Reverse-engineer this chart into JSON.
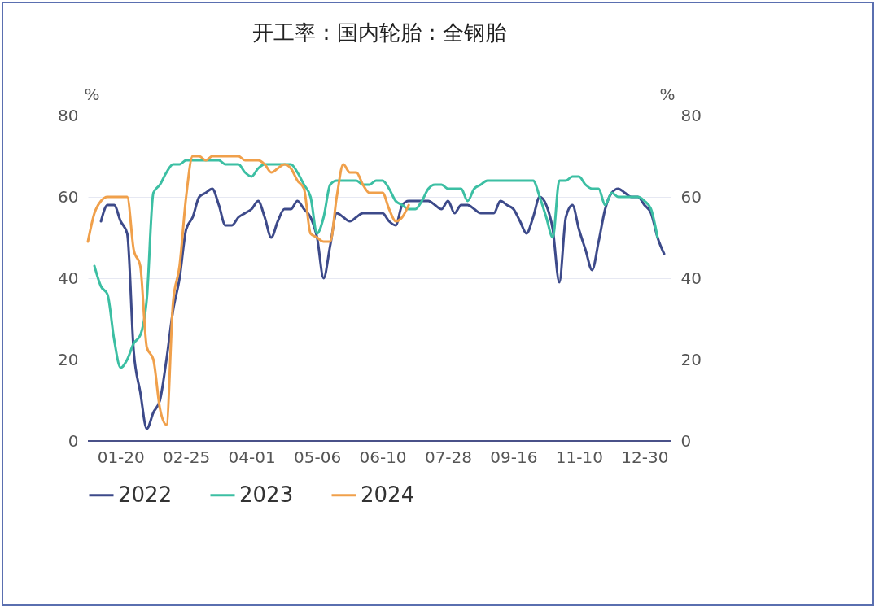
{
  "chart_data": {
    "type": "line",
    "title": "开工率：国内轮胎：全钢胎",
    "ylabel": "%",
    "y2label": "%",
    "categories": [
      null,
      null,
      null,
      null,
      null,
      "01-20",
      null,
      null,
      null,
      null,
      null,
      null,
      null,
      null,
      null,
      "02-25",
      null,
      null,
      null,
      null,
      null,
      null,
      null,
      null,
      null,
      "04-01",
      null,
      null,
      null,
      null,
      null,
      null,
      null,
      null,
      null,
      "05-06",
      null,
      null,
      null,
      null,
      null,
      null,
      null,
      null,
      null,
      "06-10",
      null,
      null,
      null,
      null,
      null,
      null,
      null,
      null,
      null,
      "07-28",
      null,
      null,
      null,
      null,
      null,
      null,
      null,
      null,
      null,
      "09-16",
      null,
      null,
      null,
      null,
      null,
      null,
      null,
      null,
      null,
      "11-10",
      null,
      null,
      null,
      null,
      null,
      null,
      null,
      null,
      null,
      "12-30",
      null,
      null,
      null,
      null
    ],
    "series": [
      {
        "name": "2022",
        "color": "#3d4a8a",
        "values": [
          null,
          null,
          54,
          58,
          58,
          54,
          51,
          22,
          12,
          3,
          7,
          10,
          20,
          32,
          40,
          52,
          55,
          60,
          61,
          62,
          58,
          53,
          53,
          55,
          56,
          57,
          59,
          55,
          50,
          54,
          57,
          57,
          59,
          57,
          55,
          50,
          40,
          48,
          56,
          55,
          54,
          55,
          56,
          56,
          56,
          56,
          54,
          53,
          58,
          59,
          59,
          59,
          59,
          58,
          57,
          59,
          56,
          58,
          58,
          57,
          56,
          56,
          56,
          59,
          58,
          57,
          54,
          51,
          55,
          60,
          58,
          52,
          39,
          55,
          58,
          52,
          47,
          42,
          49,
          57,
          61,
          62,
          61,
          60,
          60,
          58,
          56,
          50,
          46,
          null
        ]
      },
      {
        "name": "2023",
        "color": "#3cbfa3",
        "values": [
          null,
          43,
          38,
          36,
          25,
          18,
          20,
          24,
          26,
          35,
          61,
          63,
          66,
          68,
          68,
          69,
          69,
          69,
          69,
          69,
          69,
          68,
          68,
          68,
          66,
          65,
          67,
          68,
          68,
          68,
          68,
          68,
          66,
          63,
          60,
          51,
          55,
          63,
          64,
          64,
          64,
          64,
          63,
          63,
          64,
          64,
          62,
          59,
          58,
          57,
          57,
          59,
          62,
          63,
          63,
          62,
          62,
          62,
          59,
          62,
          63,
          64,
          64,
          64,
          64,
          64,
          64,
          64,
          64,
          60,
          55,
          50,
          64,
          64,
          65,
          65,
          63,
          62,
          62,
          58,
          61,
          60,
          60,
          60,
          60,
          59,
          57,
          50,
          null,
          null
        ]
      },
      {
        "name": "2024",
        "color": "#f0a04b",
        "values": [
          49,
          56,
          59,
          60,
          60,
          60,
          60,
          47,
          43,
          23,
          20,
          8,
          4,
          34,
          43,
          60,
          70,
          70,
          69,
          70,
          70,
          70,
          70,
          70,
          69,
          69,
          69,
          68,
          66,
          67,
          68,
          67,
          64,
          62,
          51,
          50,
          49,
          49,
          60,
          68,
          66,
          66,
          63,
          61,
          61,
          61,
          57,
          54,
          55,
          58,
          null,
          null,
          null,
          null,
          null,
          null,
          null,
          null,
          null,
          null,
          null,
          null,
          null,
          null,
          null,
          null,
          null,
          null,
          null,
          null,
          null,
          null,
          null,
          null,
          null,
          null,
          null,
          null,
          null,
          null,
          null,
          null,
          null,
          null,
          null,
          null,
          null,
          null,
          null,
          null
        ]
      }
    ],
    "ylim": [
      0,
      80
    ],
    "yticks": [
      0,
      20,
      40,
      60,
      80
    ],
    "y2lim": [
      0,
      80
    ],
    "y2ticks": [
      0,
      20,
      40,
      60,
      80
    ],
    "grid": "y",
    "legend": "bottom",
    "line_style": "solid"
  }
}
